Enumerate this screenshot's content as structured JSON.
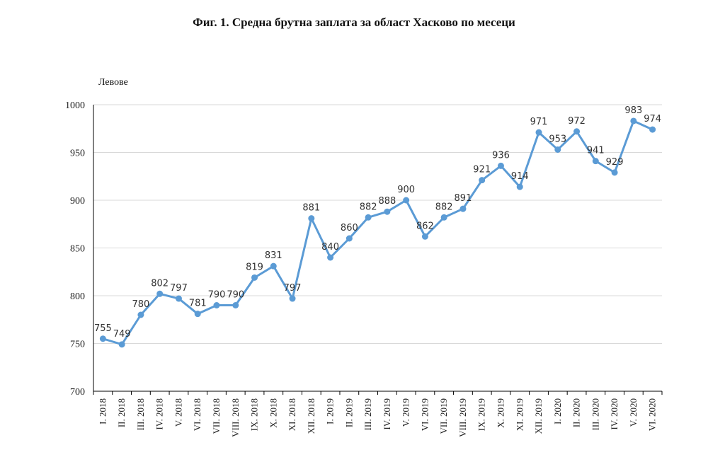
{
  "chart_data": {
    "type": "line",
    "title": "Фиг. 1. Средна брутна заплата за област Хасково по месеци",
    "ylabel": "Левове",
    "xlabel": "",
    "ylim": [
      700,
      1000
    ],
    "yticks": [
      700,
      750,
      800,
      850,
      900,
      950,
      1000
    ],
    "grid": true,
    "legend": "none",
    "line_color": "#5b9bd5",
    "categories": [
      "I. 2018",
      "II. 2018",
      "III. 2018",
      "IV. 2018",
      "V. 2018",
      "VI. 2018",
      "VII. 2018",
      "VIII. 2018",
      "IX. 2018",
      "X. 2018",
      "XI. 2018",
      "XII. 2018",
      "I. 2019",
      "II. 2019",
      "III. 2019",
      "IV. 2019",
      "V. 2019",
      "VI. 2019",
      "VII. 2019",
      "VIII. 2019",
      "IX. 2019",
      "X. 2019",
      "XI. 2019",
      "XII. 2019",
      "I. 2020",
      "II. 2020",
      "III. 2020",
      "IV. 2020",
      "V. 2020",
      "VI. 2020"
    ],
    "series": [
      {
        "values": [
          755,
          749,
          780,
          802,
          797,
          781,
          790,
          790,
          819,
          831,
          797,
          881,
          840,
          860,
          882,
          888,
          900,
          862,
          882,
          891,
          921,
          936,
          914,
          971,
          953,
          972,
          941,
          929,
          983,
          974
        ]
      }
    ]
  }
}
